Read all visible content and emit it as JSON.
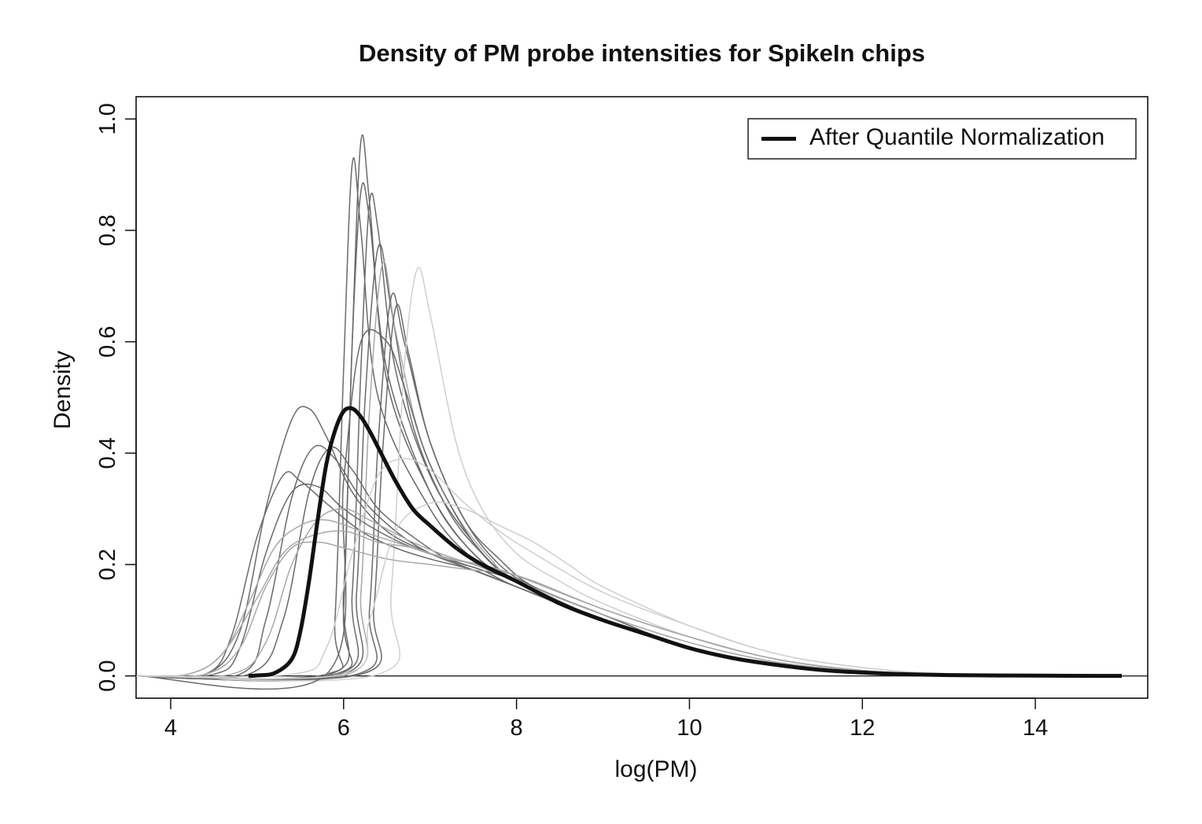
{
  "chart_data": {
    "type": "line",
    "title": "Density of PM probe intensities for SpikeIn chips",
    "xlabel": "log(PM)",
    "ylabel": "Density",
    "xlim": [
      3.6,
      15.3
    ],
    "ylim": [
      -0.04,
      1.04
    ],
    "xticks": [
      4,
      6,
      8,
      10,
      12,
      14
    ],
    "yticks": [
      0.0,
      0.2,
      0.4,
      0.6,
      0.8,
      1.0
    ],
    "ytick_labels": [
      "0.0",
      "0.2",
      "0.4",
      "0.6",
      "0.8",
      "1.0"
    ],
    "grid": false,
    "legend_position": "top-right",
    "legend": [
      {
        "label": "After Quantile Normalization",
        "color": "#111111"
      }
    ],
    "line_colors": {
      "chips_dark": "#6a6a6a",
      "chips_light": "#a8a8a8",
      "chips_lightest": "#cfcfcf",
      "normalized": "#111111"
    },
    "chip_series": [
      {
        "shade": "dark",
        "x": [
          3.6,
          5.9,
          6.0,
          6.1,
          6.2,
          6.3,
          6.5,
          7.0,
          7.5,
          8.0,
          9.0,
          10.0,
          11.0,
          12.0,
          13.0,
          15.0
        ],
        "y": [
          0,
          0.003,
          0.12,
          0.6,
          0.96,
          0.85,
          0.53,
          0.33,
          0.22,
          0.17,
          0.1,
          0.05,
          0.02,
          0.008,
          0.002,
          0
        ]
      },
      {
        "shade": "dark",
        "x": [
          3.6,
          5.8,
          5.9,
          6.0,
          6.1,
          6.2,
          6.4,
          7.0,
          7.5,
          8.0,
          9.0,
          10.0,
          11.0,
          12.0,
          13.0,
          15.0
        ],
        "y": [
          0,
          0.003,
          0.1,
          0.55,
          0.92,
          0.8,
          0.5,
          0.3,
          0.21,
          0.17,
          0.1,
          0.05,
          0.02,
          0.008,
          0.002,
          0
        ]
      },
      {
        "shade": "dark",
        "x": [
          3.6,
          5.85,
          6.0,
          6.1,
          6.2,
          6.3,
          6.5,
          7.0,
          7.5,
          8.0,
          9.0,
          10.0,
          11.0,
          12.0,
          13.0,
          15.0
        ],
        "y": [
          0,
          0.003,
          0.15,
          0.6,
          0.87,
          0.82,
          0.55,
          0.33,
          0.22,
          0.17,
          0.1,
          0.05,
          0.02,
          0.008,
          0.002,
          0
        ]
      },
      {
        "shade": "dark",
        "x": [
          3.6,
          5.95,
          6.1,
          6.2,
          6.3,
          6.4,
          6.6,
          7.0,
          7.5,
          8.0,
          9.0,
          10.0,
          11.0,
          12.0,
          13.0,
          15.0
        ],
        "y": [
          0,
          0.003,
          0.15,
          0.55,
          0.85,
          0.8,
          0.55,
          0.36,
          0.24,
          0.17,
          0.1,
          0.05,
          0.02,
          0.008,
          0.002,
          0
        ]
      },
      {
        "shade": "dark",
        "x": [
          3.6,
          6.0,
          6.15,
          6.25,
          6.4,
          6.55,
          6.8,
          7.2,
          7.6,
          8.0,
          9.0,
          10.0,
          11.0,
          12.0,
          13.0,
          15.0
        ],
        "y": [
          0,
          0.003,
          0.15,
          0.5,
          0.77,
          0.66,
          0.45,
          0.3,
          0.22,
          0.17,
          0.1,
          0.05,
          0.02,
          0.008,
          0.002,
          0
        ]
      },
      {
        "shade": "light",
        "x": [
          3.6,
          6.05,
          6.2,
          6.3,
          6.45,
          6.6,
          6.9,
          7.3,
          7.7,
          8.0,
          9.0,
          10.0,
          11.0,
          12.0,
          13.0,
          15.0
        ],
        "y": [
          0,
          0.003,
          0.15,
          0.48,
          0.74,
          0.62,
          0.42,
          0.29,
          0.21,
          0.17,
          0.1,
          0.05,
          0.02,
          0.008,
          0.002,
          0
        ]
      },
      {
        "shade": "dark",
        "x": [
          3.6,
          6.15,
          6.3,
          6.4,
          6.55,
          6.7,
          7.0,
          7.4,
          7.8,
          8.2,
          9.0,
          10.0,
          11.0,
          12.0,
          13.0,
          15.0
        ],
        "y": [
          0,
          0.003,
          0.12,
          0.42,
          0.68,
          0.6,
          0.42,
          0.28,
          0.2,
          0.16,
          0.11,
          0.05,
          0.02,
          0.008,
          0.002,
          0
        ]
      },
      {
        "shade": "dark",
        "x": [
          3.6,
          6.2,
          6.35,
          6.45,
          6.6,
          6.75,
          7.0,
          7.4,
          7.8,
          8.2,
          9.0,
          10.0,
          11.0,
          12.0,
          13.0,
          15.0
        ],
        "y": [
          0,
          0.003,
          0.12,
          0.4,
          0.66,
          0.58,
          0.42,
          0.28,
          0.21,
          0.16,
          0.11,
          0.05,
          0.02,
          0.008,
          0.002,
          0
        ]
      },
      {
        "shade": "lightest",
        "x": [
          3.6,
          6.4,
          6.55,
          6.7,
          6.85,
          7.0,
          7.3,
          7.6,
          8.0,
          8.5,
          9.0,
          10.0,
          11.0,
          12.0,
          13.0,
          15.0
        ],
        "y": [
          0,
          0.003,
          0.15,
          0.55,
          0.73,
          0.65,
          0.42,
          0.3,
          0.22,
          0.17,
          0.13,
          0.07,
          0.03,
          0.01,
          0.003,
          0
        ]
      },
      {
        "shade": "dark",
        "x": [
          3.6,
          5.8,
          6.0,
          6.2,
          6.5,
          6.7,
          7.0,
          7.5,
          8.0,
          9.0,
          10.0,
          11.0,
          12.0,
          13.0,
          15.0
        ],
        "y": [
          0,
          0.003,
          0.35,
          0.6,
          0.6,
          0.52,
          0.38,
          0.24,
          0.17,
          0.1,
          0.05,
          0.02,
          0.008,
          0.002,
          0
        ]
      },
      {
        "shade": "dark",
        "x": [
          3.6,
          4.4,
          4.8,
          5.1,
          5.4,
          5.6,
          5.8,
          6.1,
          6.5,
          7.0,
          7.5,
          8.0,
          9.0,
          10.0,
          11.0,
          12.0,
          13.0,
          15.0
        ],
        "y": [
          0,
          0.003,
          0.08,
          0.3,
          0.46,
          0.48,
          0.43,
          0.33,
          0.26,
          0.22,
          0.19,
          0.16,
          0.1,
          0.05,
          0.02,
          0.008,
          0.002,
          0
        ]
      },
      {
        "shade": "dark",
        "x": [
          3.6,
          4.4,
          4.7,
          5.0,
          5.3,
          5.5,
          5.8,
          6.2,
          6.6,
          7.0,
          7.5,
          8.0,
          9.0,
          10.0,
          11.0,
          12.0,
          13.0,
          15.0
        ],
        "y": [
          0,
          0.003,
          0.07,
          0.25,
          0.36,
          0.35,
          0.31,
          0.26,
          0.23,
          0.21,
          0.19,
          0.16,
          0.1,
          0.05,
          0.02,
          0.008,
          0.002,
          0
        ]
      },
      {
        "shade": "dark",
        "x": [
          3.6,
          4.5,
          4.8,
          5.1,
          5.4,
          5.7,
          6.0,
          6.4,
          6.8,
          7.2,
          7.6,
          8.0,
          9.0,
          10.0,
          11.0,
          12.0,
          13.0,
          15.0
        ],
        "y": [
          0,
          0.003,
          0.05,
          0.22,
          0.33,
          0.34,
          0.3,
          0.26,
          0.23,
          0.21,
          0.19,
          0.17,
          0.1,
          0.05,
          0.02,
          0.008,
          0.002,
          0
        ]
      },
      {
        "shade": "dark",
        "x": [
          3.6,
          4.8,
          5.1,
          5.4,
          5.65,
          5.9,
          6.2,
          6.6,
          7.0,
          7.5,
          8.0,
          9.0,
          10.0,
          11.0,
          12.0,
          13.0,
          15.0
        ],
        "y": [
          0,
          0.003,
          0.1,
          0.32,
          0.41,
          0.39,
          0.32,
          0.26,
          0.22,
          0.19,
          0.16,
          0.1,
          0.05,
          0.02,
          0.008,
          0.002,
          0
        ]
      },
      {
        "shade": "dark",
        "x": [
          3.6,
          4.9,
          5.3,
          5.6,
          5.85,
          6.1,
          6.4,
          6.8,
          7.2,
          7.6,
          8.0,
          9.0,
          10.0,
          11.0,
          12.0,
          13.0,
          15.0
        ],
        "y": [
          0,
          0.003,
          0.1,
          0.33,
          0.41,
          0.37,
          0.3,
          0.25,
          0.21,
          0.19,
          0.16,
          0.1,
          0.05,
          0.02,
          0.008,
          0.002,
          0
        ]
      },
      {
        "shade": "light",
        "x": [
          3.6,
          4.2,
          4.6,
          4.9,
          5.2,
          5.5,
          5.8,
          6.2,
          6.6,
          7.0,
          7.5,
          8.0,
          9.0,
          10.0,
          11.0,
          12.0,
          13.0,
          15.0
        ],
        "y": [
          0,
          0.003,
          0.04,
          0.13,
          0.23,
          0.27,
          0.28,
          0.26,
          0.24,
          0.22,
          0.2,
          0.17,
          0.11,
          0.06,
          0.025,
          0.009,
          0.002,
          0
        ]
      },
      {
        "shade": "light",
        "x": [
          3.6,
          4.2,
          4.6,
          5.0,
          5.3,
          5.6,
          6.0,
          6.4,
          6.8,
          7.2,
          7.6,
          8.0,
          9.0,
          10.0,
          11.0,
          12.0,
          13.0,
          15.0
        ],
        "y": [
          0,
          0.003,
          0.04,
          0.14,
          0.22,
          0.25,
          0.26,
          0.24,
          0.23,
          0.21,
          0.2,
          0.18,
          0.12,
          0.07,
          0.03,
          0.01,
          0.003,
          0
        ]
      },
      {
        "shade": "light",
        "x": [
          3.6,
          4.4,
          4.8,
          5.1,
          5.4,
          5.7,
          6.0,
          6.5,
          7.0,
          7.5,
          8.0,
          9.0,
          10.0,
          11.0,
          12.0,
          13.0,
          15.0
        ],
        "y": [
          0,
          0.003,
          0.05,
          0.16,
          0.23,
          0.24,
          0.23,
          0.21,
          0.2,
          0.19,
          0.18,
          0.12,
          0.07,
          0.03,
          0.01,
          0.003,
          0
        ]
      },
      {
        "shade": "light",
        "x": [
          3.6,
          4.7,
          5.1,
          5.4,
          5.7,
          6.0,
          6.3,
          6.8,
          7.3,
          7.8,
          8.2,
          9.0,
          10.0,
          11.0,
          12.0,
          13.0,
          15.0
        ],
        "y": [
          0,
          0.003,
          0.06,
          0.2,
          0.28,
          0.3,
          0.28,
          0.24,
          0.21,
          0.19,
          0.17,
          0.12,
          0.07,
          0.03,
          0.01,
          0.003,
          0
        ]
      },
      {
        "shade": "lightest",
        "x": [
          3.6,
          5.4,
          5.8,
          6.1,
          6.4,
          6.7,
          7.0,
          7.4,
          7.8,
          8.2,
          9.0,
          10.0,
          11.0,
          12.0,
          13.0,
          15.0
        ],
        "y": [
          0,
          0.003,
          0.05,
          0.22,
          0.36,
          0.39,
          0.37,
          0.31,
          0.26,
          0.22,
          0.15,
          0.09,
          0.04,
          0.015,
          0.004,
          0
        ]
      },
      {
        "shade": "lightest",
        "x": [
          3.6,
          6.0,
          6.3,
          6.6,
          7.0,
          7.4,
          7.8,
          8.2,
          8.6,
          9.0,
          10.0,
          11.0,
          12.0,
          13.0,
          15.0
        ],
        "y": [
          0,
          0.003,
          0.1,
          0.26,
          0.31,
          0.3,
          0.27,
          0.24,
          0.2,
          0.16,
          0.09,
          0.04,
          0.015,
          0.004,
          0
        ]
      }
    ],
    "series": [
      {
        "name": "After Quantile Normalization",
        "x": [
          4.9,
          5.0,
          5.2,
          5.4,
          5.5,
          5.6,
          5.7,
          5.8,
          5.9,
          6.0,
          6.1,
          6.2,
          6.3,
          6.4,
          6.6,
          6.8,
          7.0,
          7.3,
          7.6,
          8.0,
          8.5,
          9.0,
          9.5,
          10.0,
          10.5,
          11.0,
          11.5,
          12.0,
          12.5,
          13.0,
          14.0,
          15.0
        ],
        "y": [
          0,
          0.001,
          0.005,
          0.03,
          0.08,
          0.17,
          0.28,
          0.38,
          0.44,
          0.475,
          0.48,
          0.465,
          0.44,
          0.41,
          0.35,
          0.3,
          0.27,
          0.23,
          0.2,
          0.17,
          0.13,
          0.1,
          0.075,
          0.05,
          0.032,
          0.02,
          0.011,
          0.006,
          0.003,
          0.0015,
          0.0005,
          0
        ]
      }
    ]
  }
}
